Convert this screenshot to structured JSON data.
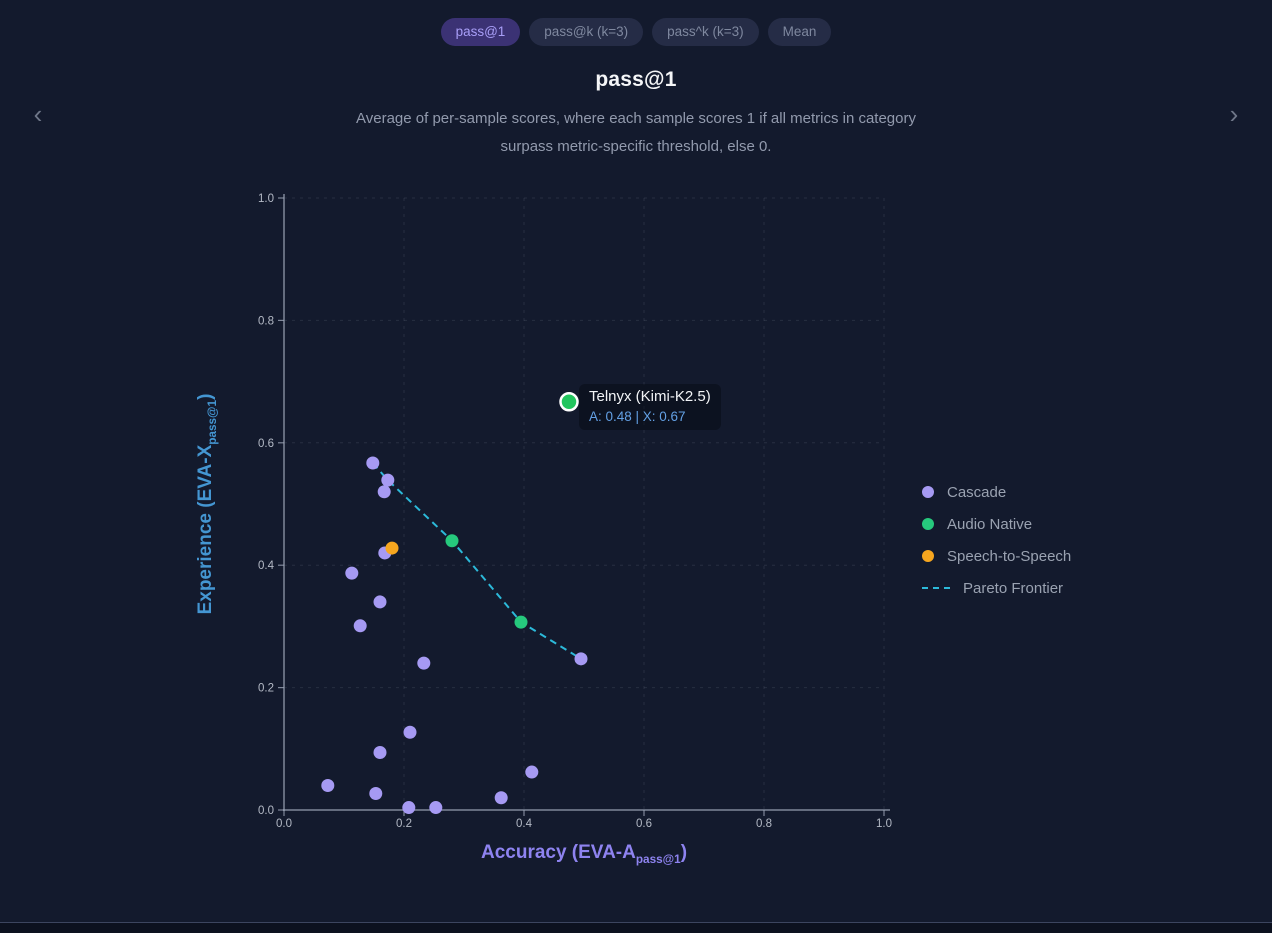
{
  "nav": {
    "prev_glyph": "‹",
    "next_glyph": "›"
  },
  "tabs": [
    {
      "label": "pass@1",
      "active": true
    },
    {
      "label": "pass@k (k=3)",
      "active": false
    },
    {
      "label": "pass^k (k=3)",
      "active": false
    },
    {
      "label": "Mean",
      "active": false
    }
  ],
  "header": {
    "title": "pass@1",
    "subtitle_line1": "Average of per-sample scores, where each sample scores 1 if all metrics in category",
    "subtitle_line2": "surpass metric-specific threshold, else 0."
  },
  "colors": {
    "background": "#131a2d",
    "cascade": "#a69af3",
    "audio_native": "#26c97d",
    "speech_to_speech": "#f6a61f",
    "pareto": "#2cb9d9",
    "axis": "#9aa3b5",
    "tick_text": "#b4bac6",
    "x_axis_label": "#8e83f0",
    "y_axis_label": "#4496d2",
    "active_tab_bg": "#3b3274",
    "active_tab_text": "#a89ef7"
  },
  "legend": {
    "items": [
      {
        "label": "Cascade",
        "marker": "dot",
        "color": "#a69af3"
      },
      {
        "label": "Audio Native",
        "marker": "dot",
        "color": "#26c97d"
      },
      {
        "label": "Speech-to-Speech",
        "marker": "dot",
        "color": "#f6a61f"
      },
      {
        "label": "Pareto Frontier",
        "marker": "dash",
        "color": "#2cb9d9"
      }
    ]
  },
  "chart_data": {
    "type": "scatter",
    "title": "pass@1",
    "xlabel": "Accuracy (EVA-A pass@1)",
    "ylabel": "Experience (EVA-X pass@1)",
    "xlabel_parts": {
      "main": "Accuracy (EVA-A",
      "sub": "pass@1",
      "close": ")"
    },
    "ylabel_parts": {
      "main": "Experience (EVA-X",
      "sub": "pass@1",
      "close": ")"
    },
    "xlim": [
      0,
      1
    ],
    "ylim": [
      0,
      1
    ],
    "xtick_labels": [
      "0.0",
      "0.2",
      "0.4",
      "0.6",
      "0.8",
      "1.0"
    ],
    "ytick_labels": [
      "0.0",
      "0.2",
      "0.4",
      "0.6",
      "0.8",
      "1.0"
    ],
    "grid": true,
    "legend_position": "right",
    "series": [
      {
        "name": "Cascade",
        "color": "#a69af3",
        "points": [
          [
            0.148,
            0.567
          ],
          [
            0.173,
            0.539
          ],
          [
            0.167,
            0.52
          ],
          [
            0.168,
            0.42
          ],
          [
            0.113,
            0.387
          ],
          [
            0.16,
            0.34
          ],
          [
            0.127,
            0.301
          ],
          [
            0.233,
            0.24
          ],
          [
            0.495,
            0.247
          ],
          [
            0.21,
            0.127
          ],
          [
            0.16,
            0.094
          ],
          [
            0.413,
            0.062
          ],
          [
            0.073,
            0.04
          ],
          [
            0.153,
            0.027
          ],
          [
            0.362,
            0.02
          ],
          [
            0.208,
            0.004
          ],
          [
            0.253,
            0.004
          ]
        ]
      },
      {
        "name": "Audio Native",
        "color": "#26c97d",
        "points": [
          [
            0.28,
            0.44
          ],
          [
            0.395,
            0.307
          ]
        ]
      },
      {
        "name": "Speech-to-Speech",
        "color": "#f6a61f",
        "points": [
          [
            0.18,
            0.428
          ]
        ]
      }
    ],
    "pareto_frontier": {
      "color": "#2cb9d9",
      "points": [
        [
          0.148,
          0.567
        ],
        [
          0.173,
          0.539
        ],
        [
          0.28,
          0.44
        ],
        [
          0.395,
          0.307
        ],
        [
          0.495,
          0.247
        ]
      ]
    },
    "highlight": {
      "series": "Audio Native",
      "color": "#22c55e",
      "x": 0.475,
      "y": 0.667,
      "label": "Telnyx (Kimi-K2.5)",
      "detail": "A: 0.48 | X: 0.67"
    }
  }
}
